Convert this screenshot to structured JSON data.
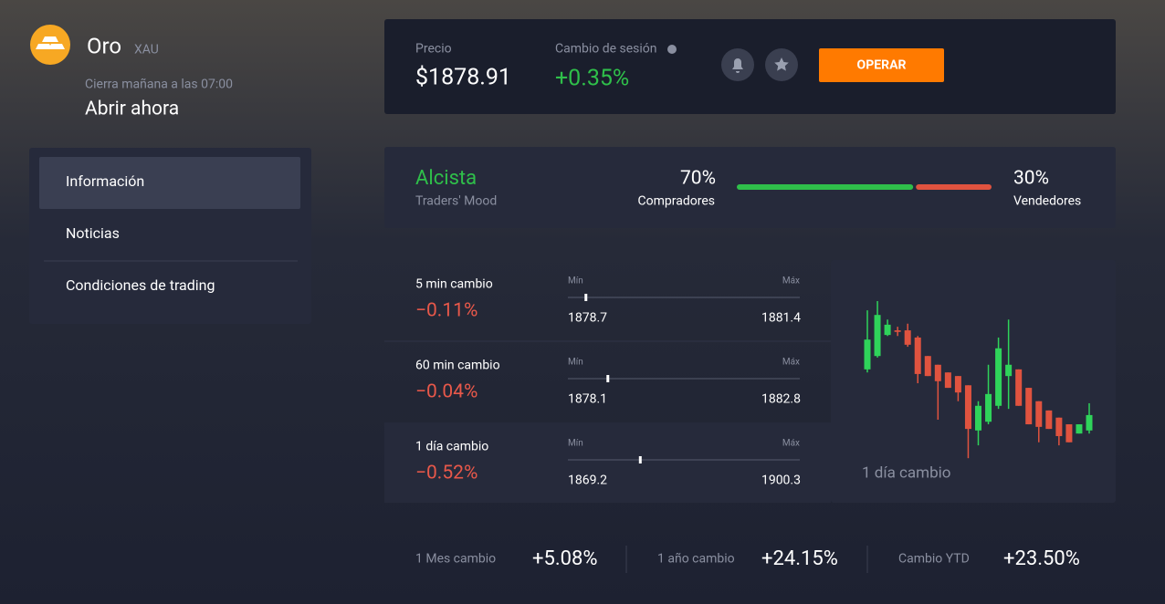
{
  "header": {
    "asset": "Oro",
    "ticker": "XAU",
    "schedule": "Cierra mañana a las 07:00",
    "status": "Abrir ahora"
  },
  "menu": [
    "Información",
    "Noticias",
    "Condiciones de trading"
  ],
  "quote": {
    "price_label": "Precio",
    "price": {
      "value": 1878.91,
      "label": "$1878.91"
    },
    "change_label": "Cambio de sesión",
    "change": "+0.35%",
    "button": "OPERAR"
  },
  "mood": {
    "trend": "Alcista",
    "caption": "Traders' Mood",
    "buyers": {
      "value": 70,
      "label": "70%",
      "name": "Compradores",
      "color": "#2fbf4a"
    },
    "sellers": {
      "value": 30,
      "label": "30%",
      "name": "Vendedores",
      "color": "#e0533f"
    }
  },
  "ranges": {
    "min_label": "Mín",
    "max_label": "Máx",
    "rows": [
      {
        "label": "5 min cambio",
        "change": "−0.11%",
        "min": 1878.7,
        "max": 1881.4
      },
      {
        "label": "60 min cambio",
        "change": "−0.04%",
        "min": 1878.1,
        "max": 1882.8
      },
      {
        "label": "1 día cambio",
        "change": "−0.52%",
        "min": 1869.2,
        "max": 1900.3
      }
    ]
  },
  "candles": {
    "label": "1 día cambio",
    "ylim": [
      1869.2,
      1900.3
    ],
    "up_color": "#2fd35a",
    "down_color": "#e0533f",
    "open": [
      1887.0,
      1889.6,
      1893.7,
      1894.6,
      1894.6,
      1893.2,
      1889.6,
      1887.9,
      1886.4,
      1885.7,
      1883.9,
      1875.1,
      1876.8,
      1879.9,
      1885.7,
      1887.0,
      1883.4,
      1880.8,
      1879.0,
      1877.6,
      1876.3,
      1874.5,
      1875.1
    ],
    "high": [
      1898.5,
      1900.3,
      1896.7,
      1895.3,
      1895.9,
      1893.5,
      1889.6,
      1887.9,
      1886.4,
      1885.7,
      1883.9,
      1880.8,
      1887.9,
      1893.2,
      1896.7,
      1887.0,
      1883.4,
      1880.8,
      1879.0,
      1877.6,
      1876.3,
      1876.3,
      1880.4
    ],
    "low": [
      1886.4,
      1889.3,
      1893.5,
      1893.5,
      1891.4,
      1884.3,
      1885.7,
      1877.2,
      1883.4,
      1880.8,
      1869.7,
      1872.2,
      1876.3,
      1879.3,
      1879.3,
      1879.9,
      1876.3,
      1872.8,
      1875.4,
      1872.2,
      1872.8,
      1874.5,
      1874.5
    ],
    "close": [
      1892.8,
      1897.6,
      1895.7,
      1894.3,
      1891.8,
      1886.1,
      1885.7,
      1884.7,
      1883.4,
      1882.5,
      1875.4,
      1879.9,
      1882.2,
      1891.1,
      1887.9,
      1879.9,
      1876.3,
      1875.8,
      1875.4,
      1874.0,
      1872.8,
      1876.3,
      1878.1
    ]
  },
  "summary": [
    {
      "label": "1 Mes cambio",
      "value": "+5.08%"
    },
    {
      "label": "1 año cambio",
      "value": "+24.15%"
    },
    {
      "label": "Cambio YTD",
      "value": "+23.50%"
    }
  ]
}
